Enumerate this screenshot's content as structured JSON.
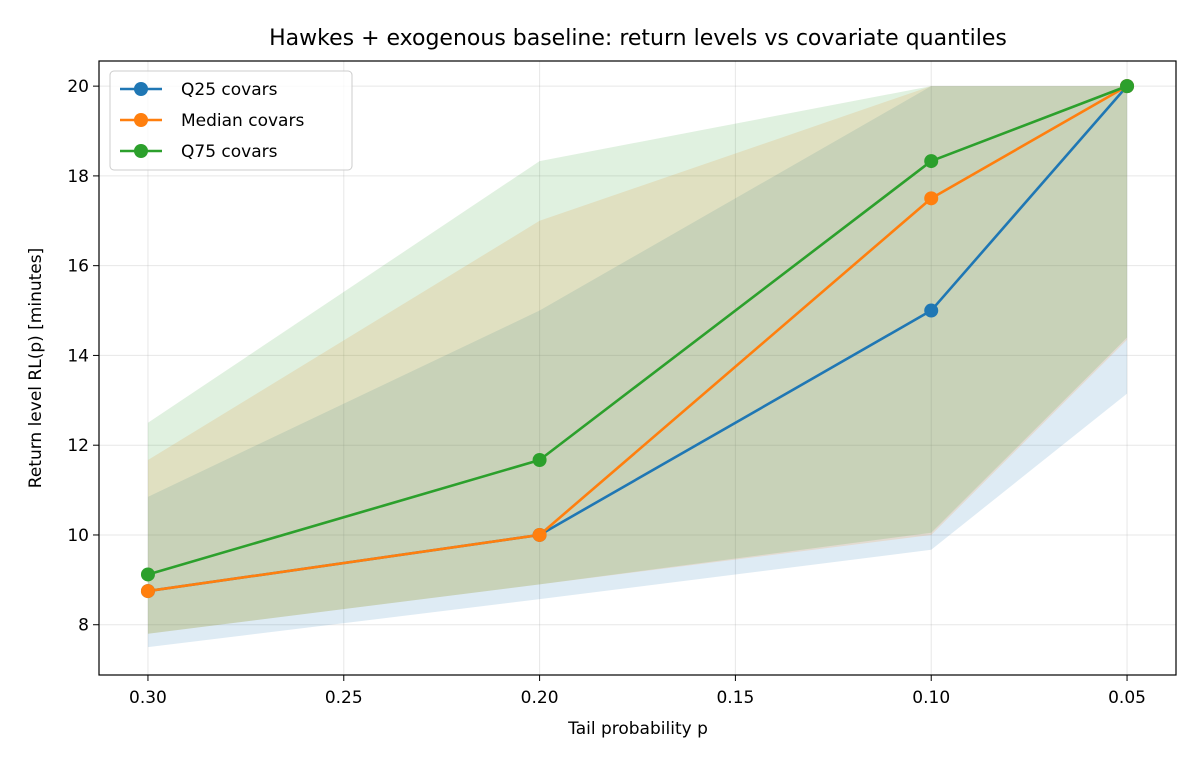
{
  "chart_data": {
    "type": "line",
    "title": "Hawkes + exogenous baseline: return levels vs covariate quantiles",
    "xlabel": "Tail probability p",
    "ylabel": "Return level RL(p) [minutes]",
    "x_inverted": true,
    "xlim": [
      0.3125,
      0.0375
    ],
    "ylim": [
      6.88,
      20.56
    ],
    "xticks": [
      0.3,
      0.25,
      0.2,
      0.15,
      0.1,
      0.05
    ],
    "xtick_labels": [
      "0.30",
      "0.25",
      "0.20",
      "0.15",
      "0.10",
      "0.05"
    ],
    "yticks": [
      8,
      10,
      12,
      14,
      16,
      18,
      20
    ],
    "ytick_labels": [
      "8",
      "10",
      "12",
      "14",
      "16",
      "18",
      "20"
    ],
    "grid": true,
    "legend_position": "top-left",
    "x": [
      0.3,
      0.2,
      0.1,
      0.05
    ],
    "series": [
      {
        "name": "Q25 covars",
        "color": "#1f77b4",
        "values": [
          8.75,
          10.0,
          15.0,
          20.0
        ],
        "band_low": [
          7.5,
          8.57,
          9.67,
          13.15
        ],
        "band_high": [
          10.85,
          15.0,
          20.0,
          20.0
        ]
      },
      {
        "name": "Median covars",
        "color": "#ff7f0e",
        "values": [
          8.75,
          10.0,
          17.5,
          20.0
        ],
        "band_low": [
          7.8,
          8.9,
          10.0,
          14.35
        ],
        "band_high": [
          11.67,
          17.0,
          20.0,
          20.0
        ]
      },
      {
        "name": "Q75 covars",
        "color": "#2ca02c",
        "values": [
          9.12,
          11.67,
          18.33,
          20.0
        ],
        "band_low": [
          7.8,
          8.9,
          10.05,
          14.4
        ],
        "band_high": [
          12.5,
          18.33,
          20.0,
          20.0
        ]
      }
    ]
  }
}
